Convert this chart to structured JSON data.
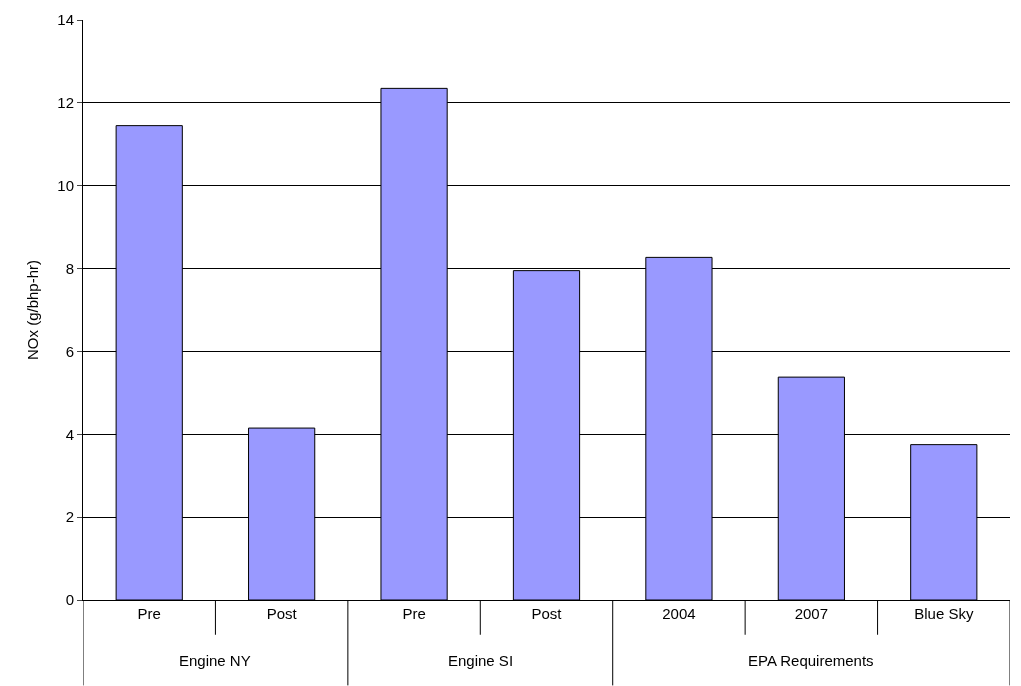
{
  "chart_data": {
    "type": "bar",
    "ylabel": "NOx (g/bhp-hr)",
    "categories": [
      "Pre",
      "Post",
      "Pre",
      "Post",
      "2004",
      "2007",
      "Blue Sky"
    ],
    "values": [
      11.45,
      4.15,
      12.35,
      7.95,
      8.27,
      5.38,
      3.75
    ],
    "color": "#9999ff",
    "annotations": [
      "Engine NY",
      "Engine SI",
      "EPA Requirements"
    ],
    "ylim": [
      0,
      14
    ],
    "yticks": [
      0,
      2,
      4,
      6,
      8,
      10,
      12,
      14
    ],
    "grid": "y"
  }
}
